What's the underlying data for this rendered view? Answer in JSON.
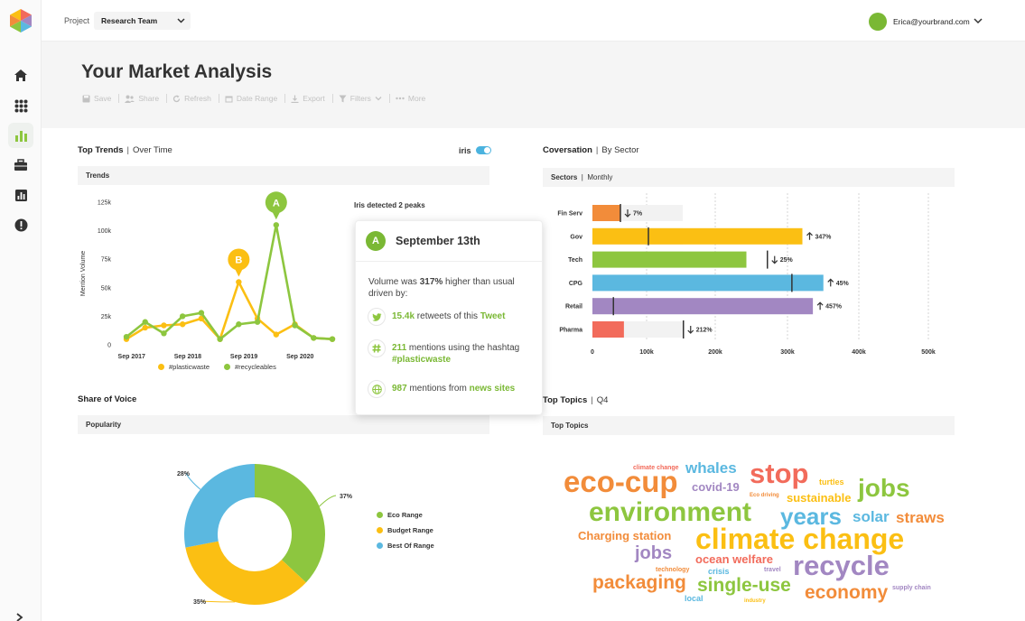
{
  "colors": {
    "green": "#8dc63f",
    "yellow": "#fbbf13",
    "blue": "#5bb8e0",
    "orange": "#f28c3a",
    "purple": "#a287c2",
    "red": "#f26b5b",
    "grey": "#f2f2f2"
  },
  "topbar": {
    "project_label": "Project",
    "project_value": "Research Team",
    "user_email": "Erica@yourbrand.com"
  },
  "header": {
    "title": "Your Market Analysis",
    "toolbar": [
      {
        "label": "Save",
        "icon": "save-icon"
      },
      {
        "label": "Share",
        "icon": "share-icon"
      },
      {
        "label": "Refresh",
        "icon": "refresh-icon"
      },
      {
        "label": "Date Range",
        "icon": "calendar-icon"
      },
      {
        "label": "Export",
        "icon": "export-icon"
      },
      {
        "label": "Filters",
        "icon": "filter-icon"
      },
      {
        "label": "More",
        "icon": "more-icon"
      }
    ]
  },
  "trends": {
    "title": "Top Trends",
    "subtitle": "Over Time",
    "iris_label": "iris",
    "subbar": "Trends",
    "peaks_note": "Iris detected 2 peaks",
    "markers": [
      {
        "label": "A"
      },
      {
        "label": "B"
      }
    ]
  },
  "popup": {
    "badge": "A",
    "title": "September 13th",
    "desc_pre": "Volume was ",
    "desc_bold": "317%",
    "desc_post": " higher than usual driven by:",
    "rows": [
      {
        "icon": "twitter-icon",
        "num": "15.4k",
        "text": " retweets of this ",
        "link": "Tweet"
      },
      {
        "icon": "hashtag-icon",
        "num": "211",
        "text": " mentions using the hashtag ",
        "link": "#plasticwaste"
      },
      {
        "icon": "globe-icon",
        "num": "987",
        "text": " mentions from ",
        "link": "news sites"
      }
    ]
  },
  "conversation": {
    "title": "Coversation",
    "subtitle": "By Sector",
    "subbar": "Sectors",
    "subbar_thin": "Monthly"
  },
  "share_of_voice": {
    "title": "Share of Voice",
    "subbar": "Popularity"
  },
  "topics": {
    "title": "Top Topics",
    "subtitle": "Q4",
    "subbar": "Top Topics",
    "words": [
      {
        "text": "eco-cup",
        "color": "#f28c3a"
      },
      {
        "text": "whales",
        "color": "#5bb8e0"
      },
      {
        "text": "stop",
        "color": "#f26b5b"
      },
      {
        "text": "climate change",
        "color": "#f26b5b"
      },
      {
        "text": "turtles",
        "color": "#fbbf13"
      },
      {
        "text": "covid-19",
        "color": "#a287c2"
      },
      {
        "text": "jobs",
        "color": "#8dc63f"
      },
      {
        "text": "Eco driving",
        "color": "#f28c3a"
      },
      {
        "text": "sustainable",
        "color": "#fbbf13"
      },
      {
        "text": "environment",
        "color": "#8dc63f"
      },
      {
        "text": "years",
        "color": "#5bb8e0"
      },
      {
        "text": "solar",
        "color": "#5bb8e0"
      },
      {
        "text": "straws",
        "color": "#f28c3a"
      },
      {
        "text": "Charging station",
        "color": "#f28c3a"
      },
      {
        "text": "climate change",
        "color": "#fbbf13"
      },
      {
        "text": "jobs",
        "color": "#a287c2"
      },
      {
        "text": "ocean welfare",
        "color": "#f26b5b"
      },
      {
        "text": "recycle",
        "color": "#a287c2"
      },
      {
        "text": "technology",
        "color": "#f28c3a"
      },
      {
        "text": "crisis",
        "color": "#5bb8e0"
      },
      {
        "text": "travel",
        "color": "#a287c2"
      },
      {
        "text": "packaging",
        "color": "#f28c3a"
      },
      {
        "text": "single-use",
        "color": "#8dc63f"
      },
      {
        "text": "economy",
        "color": "#f28c3a"
      },
      {
        "text": "supply chain",
        "color": "#a287c2"
      },
      {
        "text": "local",
        "color": "#5bb8e0"
      },
      {
        "text": "industry",
        "color": "#fbbf13"
      }
    ]
  },
  "chart_data": [
    {
      "type": "line",
      "title": "",
      "xlabel": "",
      "ylabel": "Mention Volume",
      "x_tick_labels": [
        "Sep 2017",
        "Sep 2018",
        "Sep 2019",
        "Sep 2020"
      ],
      "y_tick_labels": [
        "0",
        "25k",
        "50k",
        "75k",
        "100k",
        "125k"
      ],
      "ylim": [
        0,
        125000
      ],
      "x": [
        0,
        1,
        2,
        3,
        4,
        5,
        6,
        7,
        8,
        9,
        10,
        11
      ],
      "series": [
        {
          "name": "#plasticwaste",
          "color": "#fbbf13",
          "values": [
            5000,
            15000,
            17000,
            18000,
            23000,
            5000,
            55000,
            23000,
            9000,
            18000,
            6000,
            5000
          ]
        },
        {
          "name": "#recycleables",
          "color": "#8dc63f",
          "values": [
            7000,
            20000,
            10000,
            25000,
            28000,
            5000,
            18000,
            20000,
            105000,
            17000,
            6000,
            5000
          ]
        }
      ],
      "legend": "bottom"
    },
    {
      "type": "bar",
      "orientation": "horizontal",
      "categories": [
        "Fin Serv",
        "Gov",
        "Tech",
        "CPG",
        "Retail",
        "Pharma"
      ],
      "values": [
        40000,
        300000,
        220000,
        330000,
        315000,
        45000
      ],
      "markers": [
        40000,
        80000,
        250000,
        285000,
        30000,
        130000
      ],
      "change_labels": [
        "7%",
        "347%",
        "25%",
        "45%",
        "457%",
        "212%"
      ],
      "change_direction": [
        "down",
        "up",
        "down",
        "up",
        "up",
        "down"
      ],
      "colors": [
        "#f28c3a",
        "#fbbf13",
        "#8dc63f",
        "#5bb8e0",
        "#a287c2",
        "#f26b5b"
      ],
      "x_tick_labels": [
        "0",
        "100k",
        "200k",
        "300k",
        "400k",
        "500k"
      ],
      "xlim": [
        0,
        480000
      ],
      "grid": true
    },
    {
      "type": "pie",
      "donut": true,
      "categories": [
        "Eco Range",
        "Budget Range",
        "Best Of Range"
      ],
      "values": [
        37,
        35,
        28
      ],
      "labels": [
        "37%",
        "35%",
        "28%"
      ],
      "colors": [
        "#8dc63f",
        "#fbbf13",
        "#5bb8e0"
      ],
      "legend": "right"
    }
  ]
}
